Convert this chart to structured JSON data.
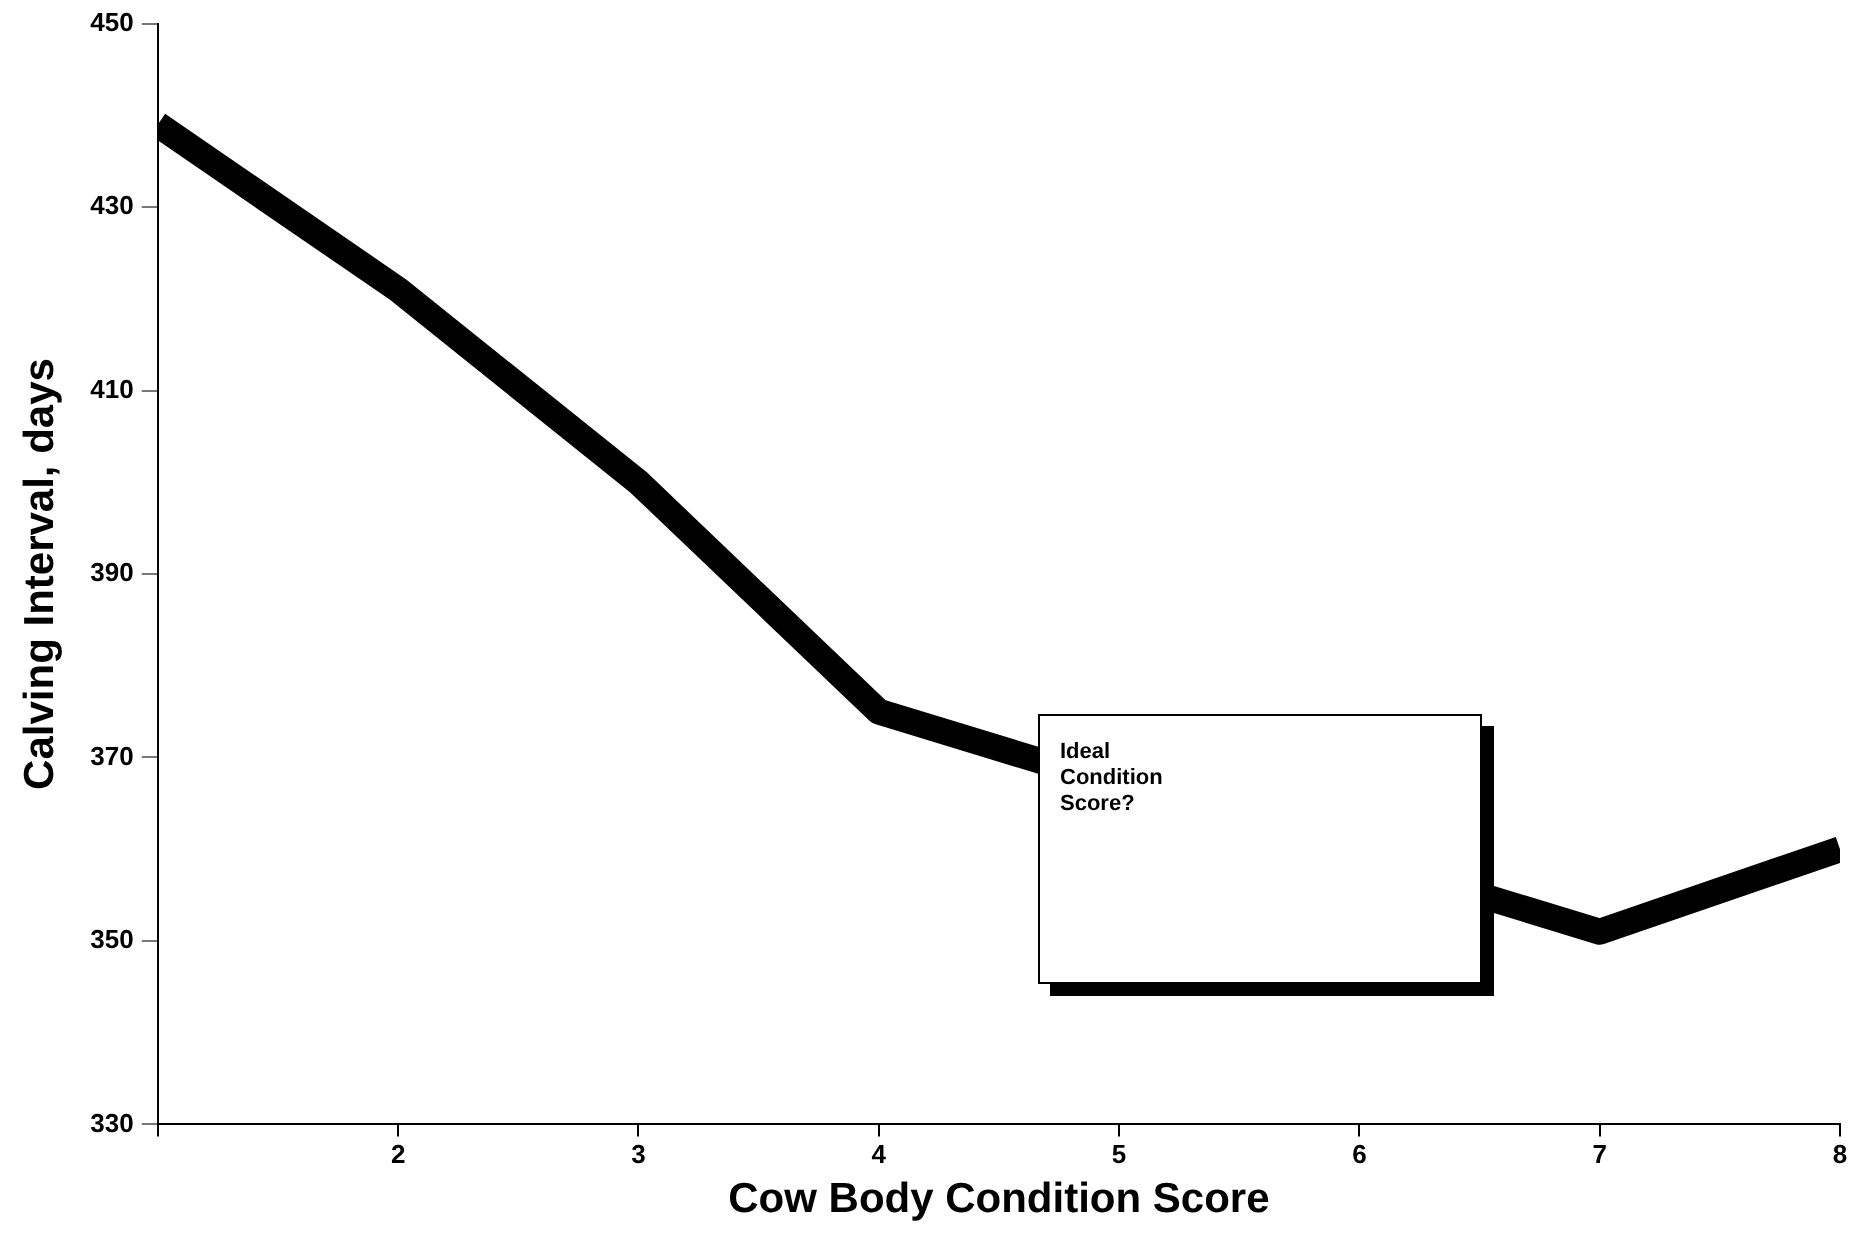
{
  "chart_data": {
    "type": "line",
    "xlabel": "Cow Body Condition Score",
    "ylabel": "Calving Interval, days",
    "x": [
      1,
      2,
      3,
      4,
      5,
      6,
      7,
      8
    ],
    "series": [
      {
        "color": "#000000",
        "values": [
          439,
          421,
          400,
          375,
          null,
          null,
          351,
          360
        ]
      }
    ],
    "xlim": [
      1,
      8
    ],
    "xticks": [
      {
        "value": 1,
        "label": null
      },
      2,
      3,
      4,
      5,
      6,
      7,
      8
    ],
    "ylim": [
      330,
      450
    ],
    "yticks": [
      330,
      350,
      370,
      390,
      410,
      430,
      450
    ],
    "grid": false,
    "legend": false,
    "marker": "none",
    "line_style": "solid",
    "annotations": [
      "Ideal Condition Score?"
    ]
  }
}
